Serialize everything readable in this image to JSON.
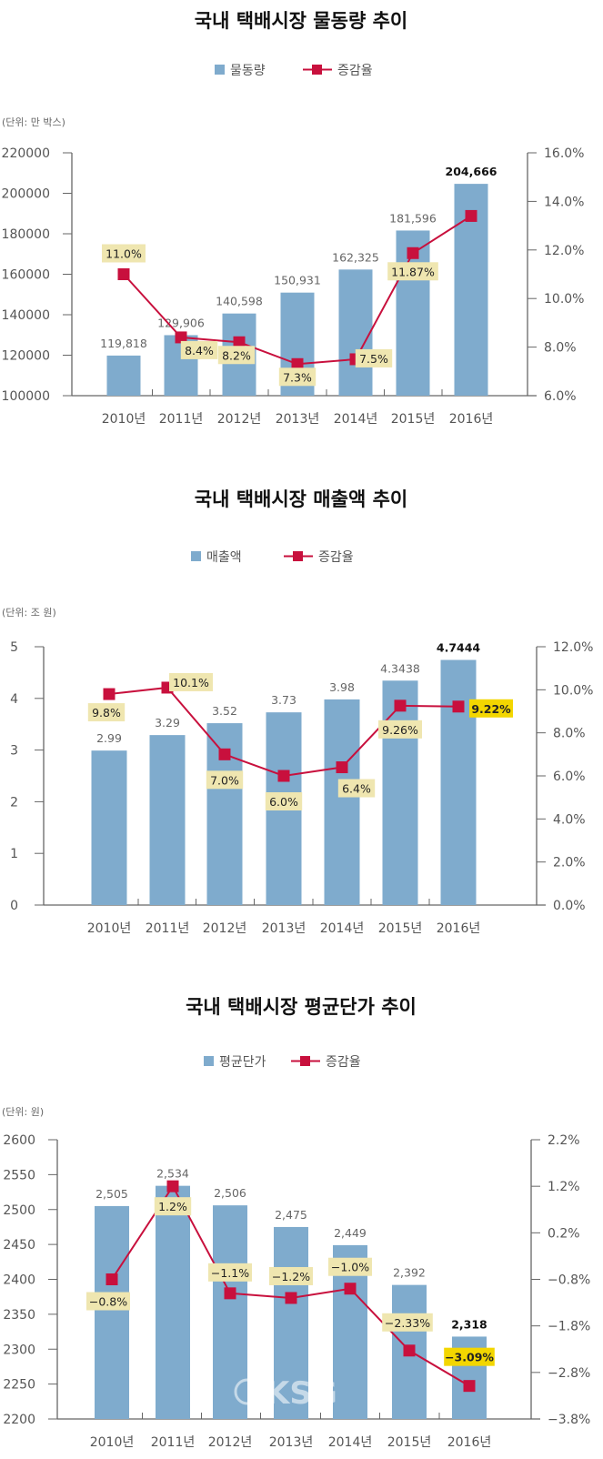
{
  "colors": {
    "bar": "#7fabcd",
    "line": "#c8103d",
    "label_bg": "#efe6b0",
    "label_bg_highlight": "#f3d600",
    "axis": "#666666"
  },
  "watermark": "KSG",
  "chart_data": [
    {
      "type": "bar+line",
      "title": "국내 택배시장 물동량 추이",
      "unit": "(단위:  만 박스)",
      "legend": {
        "bar": "물동량",
        "line": "증감율"
      },
      "categories": [
        "2010년",
        "2011년",
        "2012년",
        "2013년",
        "2014년",
        "2015년",
        "2016년"
      ],
      "series": [
        {
          "name": "물동량",
          "axis": "left",
          "values": [
            119818,
            129906,
            140598,
            150931,
            162325,
            181596,
            204666
          ],
          "labels": [
            "119,818",
            "129,906",
            "140,598",
            "150,931",
            "162,325",
            "181,596",
            "204,666"
          ]
        },
        {
          "name": "증감율",
          "axis": "right",
          "values": [
            11.0,
            8.4,
            8.2,
            7.3,
            7.5,
            11.87,
            13.4
          ],
          "labels": [
            "11.0%",
            "8.4%",
            "8.2%",
            "7.3%",
            "7.5%",
            "11.87%",
            ""
          ]
        }
      ],
      "ylim_left": [
        100000,
        220000
      ],
      "yticks_left": [
        "220000",
        "200000",
        "180000",
        "160000",
        "140000",
        "120000",
        "100000"
      ],
      "ylim_right": [
        6.0,
        16.0
      ],
      "yticks_right": [
        "16.0%",
        "14.0%",
        "12.0%",
        "10.0%",
        "8.0%",
        "6.0%"
      ]
    },
    {
      "type": "bar+line",
      "title": "국내 택배시장 매출액 추이",
      "unit": "(단위:  조 원)",
      "legend": {
        "bar": "매출액",
        "line": "증감율"
      },
      "categories": [
        "2010년",
        "2011년",
        "2012년",
        "2013년",
        "2014년",
        "2015년",
        "2016년"
      ],
      "series": [
        {
          "name": "매출액",
          "axis": "left",
          "values": [
            2.99,
            3.29,
            3.52,
            3.73,
            3.98,
            4.3438,
            4.7444
          ],
          "labels": [
            "2.99",
            "3.29",
            "3.52",
            "3.73",
            "3.98",
            "4.3438",
            "4.7444"
          ]
        },
        {
          "name": "증감율",
          "axis": "right",
          "values": [
            9.8,
            10.1,
            7.0,
            6.0,
            6.4,
            9.26,
            9.22
          ],
          "labels": [
            "9.8%",
            "10.1%",
            "7.0%",
            "6.0%",
            "6.4%",
            "9.26%",
            "9.22%"
          ]
        }
      ],
      "ylim_left": [
        0,
        5
      ],
      "yticks_left": [
        "5",
        "4",
        "3",
        "2",
        "1",
        "0"
      ],
      "ylim_right": [
        0.0,
        12.0
      ],
      "yticks_right": [
        "12.0%",
        "10.0%",
        "8.0%",
        "6.0%",
        "4.0%",
        "2.0%",
        "0.0%"
      ]
    },
    {
      "type": "bar+line",
      "title": "국내 택배시장 평균단가 추이",
      "unit": "(단위:  원)",
      "legend": {
        "bar": "평균단가",
        "line": "증감율"
      },
      "categories": [
        "2010년",
        "2011년",
        "2012년",
        "2013년",
        "2014년",
        "2015년",
        "2016년"
      ],
      "series": [
        {
          "name": "평균단가",
          "axis": "left",
          "values": [
            2505,
            2534,
            2506,
            2475,
            2449,
            2392,
            2318
          ],
          "labels": [
            "2,505",
            "2,534",
            "2,506",
            "2,475",
            "2,449",
            "2,392",
            "2,318"
          ]
        },
        {
          "name": "증감율",
          "axis": "right",
          "values": [
            -0.8,
            1.2,
            -1.1,
            -1.2,
            -1.0,
            -2.33,
            -3.09
          ],
          "labels": [
            "−0.8%",
            "1.2%",
            "−1.1%",
            "−1.2%",
            "−1.0%",
            "−2.33%",
            "−3.09%"
          ]
        }
      ],
      "ylim_left": [
        2200,
        2600
      ],
      "yticks_left": [
        "2600",
        "2550",
        "2500",
        "2450",
        "2400",
        "2350",
        "2300",
        "2250",
        "2200"
      ],
      "ylim_right": [
        -3.8,
        2.2
      ],
      "yticks_right": [
        "2.2%",
        "1.2%",
        "0.2%",
        "−0.8%",
        "−1.8%",
        "−2.8%",
        "−3.8%"
      ]
    }
  ]
}
